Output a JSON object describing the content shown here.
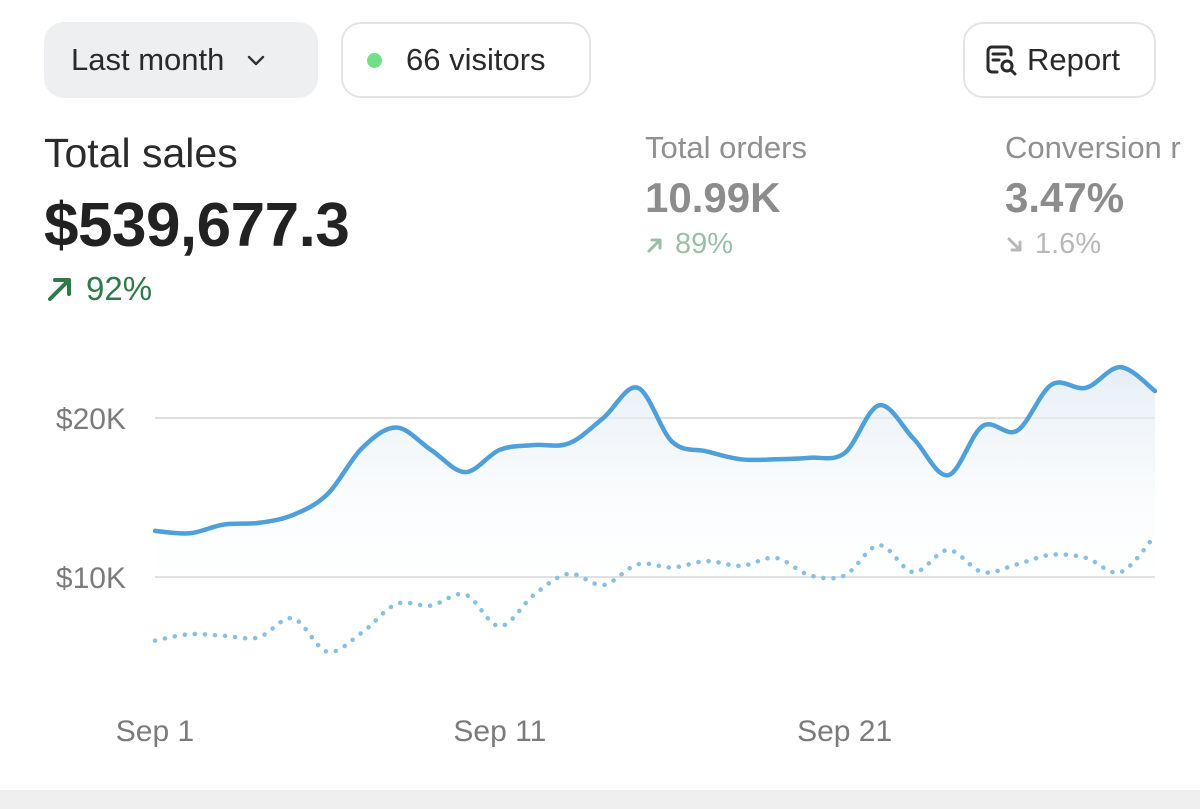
{
  "toolbar": {
    "range_label": "Last month",
    "visitors_label": "66 visitors",
    "visitors_dot_color": "#6ee087",
    "report_label": "Report"
  },
  "metrics": {
    "total_sales": {
      "label": "Total sales",
      "value": "$539,677.3",
      "change": "92%",
      "direction": "up"
    },
    "total_orders": {
      "label": "Total orders",
      "value": "10.99K",
      "change": "89%",
      "direction": "up"
    },
    "conversion": {
      "label": "Conversion r",
      "value": "3.47%",
      "change": "1.6%",
      "direction": "down"
    }
  },
  "chart_data": {
    "type": "line",
    "x_tick_labels": [
      "Sep 1",
      "Sep 11",
      "Sep 21"
    ],
    "y_tick_labels": [
      "$20K",
      "$10K"
    ],
    "y_ticks": [
      20000,
      10000
    ],
    "grid": true,
    "series": [
      {
        "style": "solid-with-area",
        "color": "#4f9fda",
        "points": [
          [
            1,
            12900
          ],
          [
            2,
            12750
          ],
          [
            3,
            13300
          ],
          [
            4,
            13400
          ],
          [
            5,
            13900
          ],
          [
            6,
            15200
          ],
          [
            7,
            18100
          ],
          [
            8,
            19400
          ],
          [
            9,
            18000
          ],
          [
            10,
            16600
          ],
          [
            11,
            18000
          ],
          [
            12,
            18300
          ],
          [
            13,
            18400
          ],
          [
            14,
            20000
          ],
          [
            15,
            21900
          ],
          [
            16,
            18500
          ],
          [
            17,
            17900
          ],
          [
            18,
            17400
          ],
          [
            19,
            17400
          ],
          [
            20,
            17500
          ],
          [
            21,
            17800
          ],
          [
            22,
            20800
          ],
          [
            23,
            18700
          ],
          [
            24,
            16400
          ],
          [
            25,
            19500
          ],
          [
            26,
            19200
          ],
          [
            27,
            22100
          ],
          [
            28,
            21900
          ],
          [
            29,
            23200
          ],
          [
            30,
            21700
          ]
        ]
      },
      {
        "style": "dotted",
        "color": "#86c0e3",
        "points": [
          [
            1,
            6000
          ],
          [
            2,
            6400
          ],
          [
            3,
            6300
          ],
          [
            4,
            6200
          ],
          [
            5,
            7400
          ],
          [
            6,
            5300
          ],
          [
            7,
            6500
          ],
          [
            8,
            8300
          ],
          [
            9,
            8200
          ],
          [
            10,
            8900
          ],
          [
            11,
            6900
          ],
          [
            12,
            8900
          ],
          [
            13,
            10200
          ],
          [
            14,
            9500
          ],
          [
            15,
            10800
          ],
          [
            16,
            10600
          ],
          [
            17,
            11000
          ],
          [
            18,
            10700
          ],
          [
            19,
            11200
          ],
          [
            20,
            10100
          ],
          [
            21,
            10100
          ],
          [
            22,
            12000
          ],
          [
            23,
            10300
          ],
          [
            24,
            11700
          ],
          [
            25,
            10300
          ],
          [
            26,
            10800
          ],
          [
            27,
            11400
          ],
          [
            28,
            11200
          ],
          [
            29,
            10300
          ],
          [
            30,
            12600
          ]
        ]
      }
    ]
  }
}
